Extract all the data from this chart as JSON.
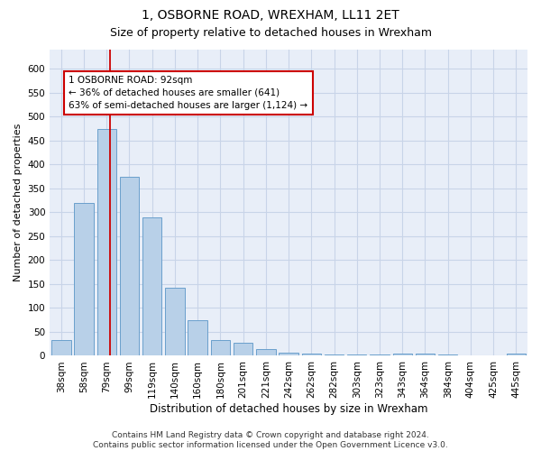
{
  "title": "1, OSBORNE ROAD, WREXHAM, LL11 2ET",
  "subtitle": "Size of property relative to detached houses in Wrexham",
  "xlabel": "Distribution of detached houses by size in Wrexham",
  "ylabel": "Number of detached properties",
  "categories": [
    "38sqm",
    "58sqm",
    "79sqm",
    "99sqm",
    "119sqm",
    "140sqm",
    "160sqm",
    "180sqm",
    "201sqm",
    "221sqm",
    "242sqm",
    "262sqm",
    "282sqm",
    "303sqm",
    "323sqm",
    "343sqm",
    "364sqm",
    "384sqm",
    "404sqm",
    "425sqm",
    "445sqm"
  ],
  "values": [
    32,
    320,
    475,
    375,
    290,
    143,
    75,
    32,
    28,
    15,
    7,
    5,
    3,
    2,
    2,
    4,
    4,
    2,
    0,
    0,
    5
  ],
  "bar_color": "#b8d0e8",
  "bar_edge_color": "#6aa0cc",
  "property_line_color": "#cc0000",
  "annotation_text": "1 OSBORNE ROAD: 92sqm\n← 36% of detached houses are smaller (641)\n63% of semi-detached houses are larger (1,124) →",
  "annotation_box_color": "#ffffff",
  "annotation_box_edge_color": "#cc0000",
  "ylim": [
    0,
    640
  ],
  "yticks": [
    0,
    50,
    100,
    150,
    200,
    250,
    300,
    350,
    400,
    450,
    500,
    550,
    600
  ],
  "grid_color": "#c8d4e8",
  "background_color": "#e8eef8",
  "footer_text": "Contains HM Land Registry data © Crown copyright and database right 2024.\nContains public sector information licensed under the Open Government Licence v3.0.",
  "title_fontsize": 10,
  "subtitle_fontsize": 9,
  "xlabel_fontsize": 8.5,
  "ylabel_fontsize": 8,
  "tick_fontsize": 7.5,
  "annotation_fontsize": 7.5,
  "footer_fontsize": 6.5
}
